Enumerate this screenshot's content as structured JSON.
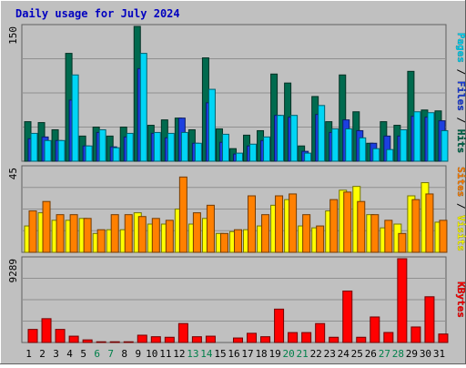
{
  "title": "Daily usage for July 2024",
  "colors": {
    "background": "#c0c0c0",
    "title": "#0000c0",
    "hits": "#006a4e",
    "files": "#1c3fe0",
    "pages": "#00d5f5",
    "visits": "#ffff00",
    "sites": "#ff8000",
    "kbytes": "#ff0000",
    "weekend_label": "#00804a"
  },
  "chart_data": [
    {
      "type": "bar",
      "name": "hits-files-pages",
      "categories": [
        "1",
        "2",
        "3",
        "4",
        "5",
        "6",
        "7",
        "8",
        "9",
        "10",
        "11",
        "12",
        "13",
        "14",
        "15",
        "16",
        "17",
        "18",
        "19",
        "20",
        "21",
        "22",
        "23",
        "24",
        "25",
        "26",
        "27",
        "28",
        "29",
        "30",
        "31"
      ],
      "weekend_days": [
        "6",
        "7",
        "13",
        "14",
        "20",
        "21",
        "27",
        "28"
      ],
      "max_label": "150",
      "ylim": [
        0,
        150
      ],
      "right_label": [
        "Pages",
        "Files",
        "Hits"
      ],
      "series": [
        {
          "name": "Hits",
          "values": [
            44,
            43,
            35,
            120,
            28,
            38,
            28,
            38,
            150,
            40,
            46,
            48,
            35,
            115,
            36,
            14,
            29,
            34,
            97,
            87,
            17,
            72,
            44,
            96,
            55,
            20,
            44,
            40,
            100,
            57,
            56
          ]
        },
        {
          "name": "Files",
          "values": [
            25,
            27,
            23,
            68,
            17,
            32,
            16,
            27,
            103,
            31,
            26,
            48,
            20,
            65,
            21,
            8,
            17,
            23,
            51,
            49,
            11,
            52,
            32,
            46,
            34,
            20,
            28,
            28,
            50,
            49,
            45
          ]
        },
        {
          "name": "Pages",
          "values": [
            31,
            23,
            23,
            96,
            17,
            35,
            15,
            31,
            120,
            32,
            31,
            32,
            20,
            80,
            30,
            9,
            19,
            27,
            51,
            51,
            9,
            62,
            36,
            36,
            26,
            14,
            13,
            35,
            55,
            54,
            34
          ]
        }
      ]
    },
    {
      "type": "bar",
      "name": "visits-sites",
      "categories": [
        "1",
        "2",
        "3",
        "4",
        "5",
        "6",
        "7",
        "8",
        "9",
        "10",
        "11",
        "12",
        "13",
        "14",
        "15",
        "16",
        "17",
        "18",
        "19",
        "20",
        "21",
        "22",
        "23",
        "24",
        "25",
        "26",
        "27",
        "28",
        "29",
        "30",
        "31"
      ],
      "max_label": "45",
      "ylim": [
        0,
        45
      ],
      "right_label": [
        "Sites",
        "Visits"
      ],
      "series": [
        {
          "name": "Visits",
          "values": [
            14,
            21,
            17,
            17,
            18,
            10,
            12,
            12,
            21,
            15,
            15,
            23,
            15,
            18,
            10,
            11,
            12,
            14,
            25,
            28,
            14,
            13,
            22,
            33,
            35,
            20,
            13,
            15,
            30,
            37,
            16
          ]
        },
        {
          "name": "Sites",
          "values": [
            22,
            27,
            20,
            20,
            18,
            12,
            20,
            20,
            19,
            18,
            17,
            40,
            21,
            25,
            10,
            12,
            30,
            20,
            30,
            31,
            20,
            14,
            28,
            32,
            27,
            20,
            17,
            10,
            28,
            31,
            17
          ]
        }
      ]
    },
    {
      "type": "bar",
      "name": "kbytes",
      "categories": [
        "1",
        "2",
        "3",
        "4",
        "5",
        "6",
        "7",
        "8",
        "9",
        "10",
        "11",
        "12",
        "13",
        "14",
        "15",
        "16",
        "17",
        "18",
        "19",
        "20",
        "21",
        "22",
        "23",
        "24",
        "25",
        "26",
        "27",
        "28",
        "29",
        "30",
        "31"
      ],
      "max_label": "9289",
      "ylim": [
        0,
        9289
      ],
      "right_label": [
        "KBytes"
      ],
      "series": [
        {
          "name": "KBytes",
          "values": [
            1450,
            2640,
            1450,
            700,
            290,
            80,
            80,
            80,
            810,
            640,
            580,
            2100,
            640,
            700,
            0,
            500,
            1020,
            640,
            3700,
            1100,
            1100,
            2100,
            580,
            5700,
            580,
            2830,
            1110,
            9289,
            1720,
            5070,
            940
          ]
        }
      ]
    }
  ]
}
